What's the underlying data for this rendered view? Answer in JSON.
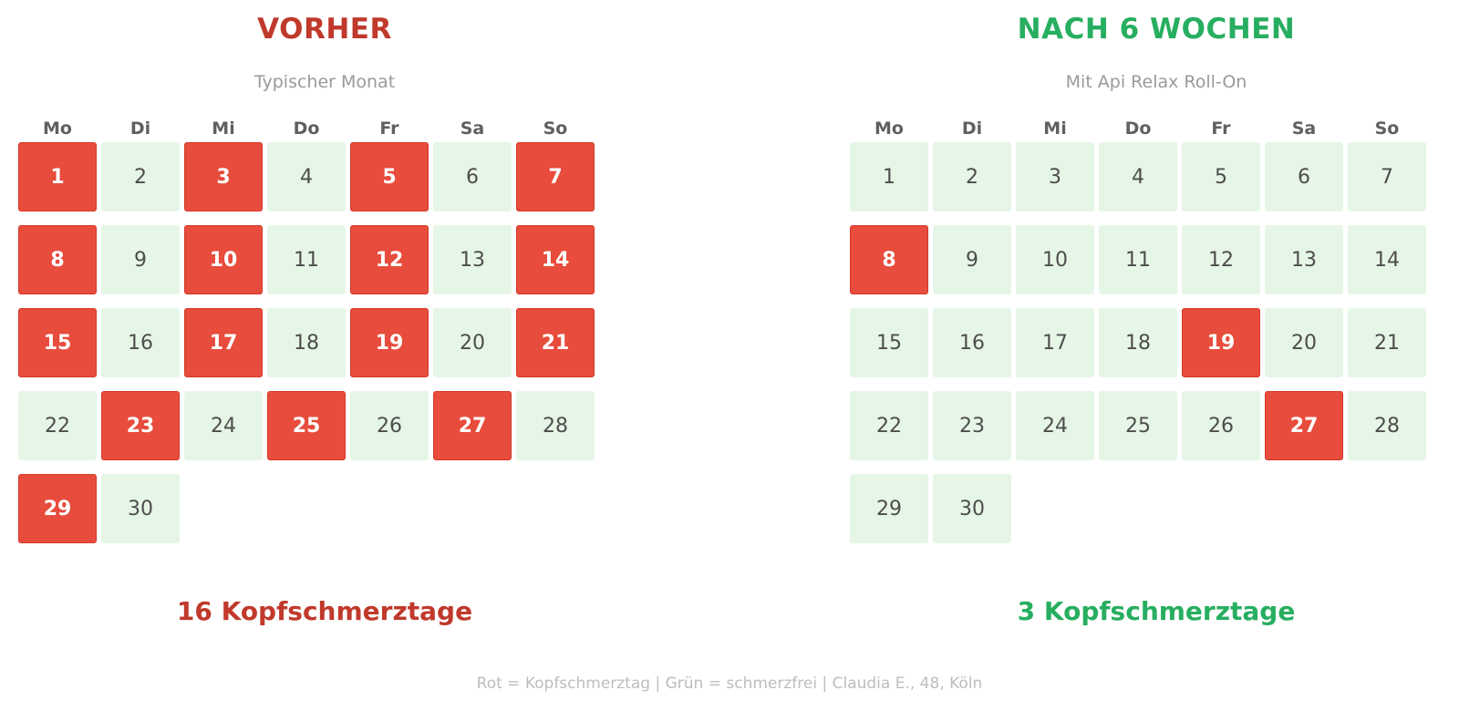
{
  "colors": {
    "pain_day": "#e74c3c",
    "pain_free_day": "#e6f6e6",
    "before_accent": "#c0392b",
    "after_accent": "#27ae60",
    "subtitle": "#9a9a9a",
    "footer": "#bdbdbd"
  },
  "weekdays": [
    "Mo",
    "Di",
    "Mi",
    "Do",
    "Fr",
    "Sa",
    "So"
  ],
  "days_in_month": 30,
  "before": {
    "title": "VORHER",
    "subtitle": "Typischer Monat",
    "headache_days": [
      1,
      3,
      5,
      7,
      8,
      10,
      12,
      14,
      15,
      17,
      19,
      21,
      23,
      25,
      27,
      29
    ],
    "summary": "16 Kopfschmerztage"
  },
  "after": {
    "title": "NACH 6 WOCHEN",
    "subtitle": "Mit Api Relax Roll-On",
    "headache_days": [
      8,
      19,
      27
    ],
    "summary": "3 Kopfschmerztage"
  },
  "footer": "Rot = Kopfschmerztag  |  Grün = schmerzfrei  |  Claudia E., 48, Köln"
}
